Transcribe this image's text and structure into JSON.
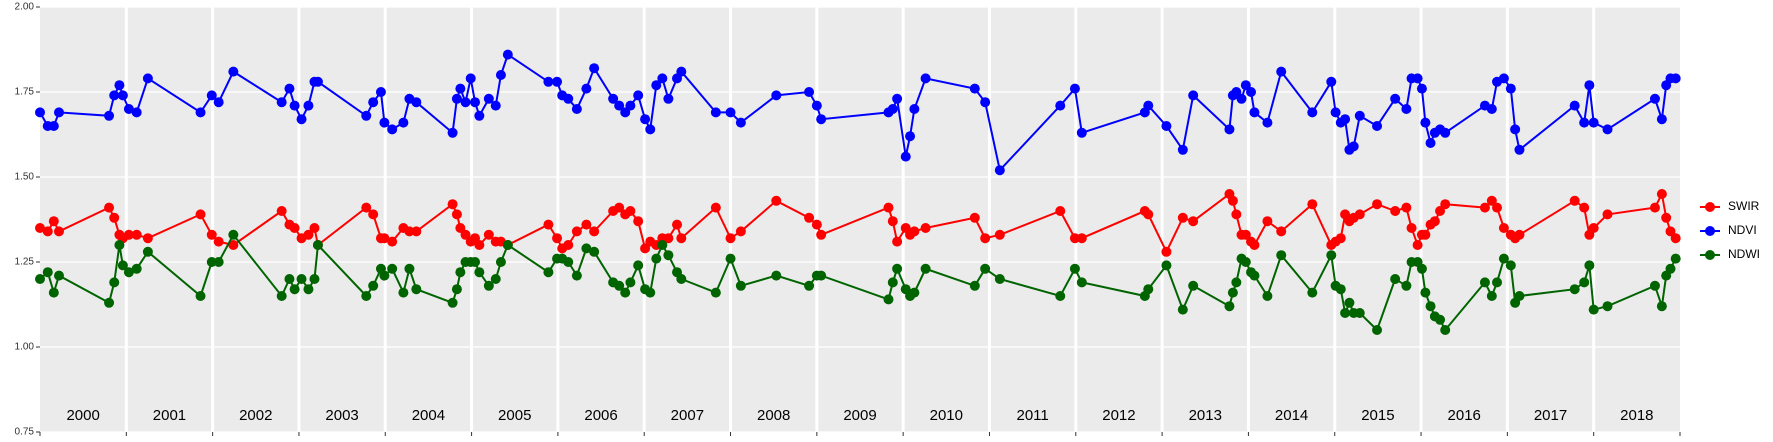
{
  "chart_data": {
    "type": "line",
    "x": [
      2000.0,
      2000.09,
      2000.16,
      2000.22,
      2000.8,
      2000.86,
      2000.92,
      2000.96,
      2001.03,
      2001.12,
      2001.25,
      2001.86,
      2001.99,
      2002.07,
      2002.24,
      2002.8,
      2002.89,
      2002.95,
      2003.03,
      2003.11,
      2003.18,
      2003.22,
      2003.78,
      2003.86,
      2003.95,
      2003.99,
      2004.08,
      2004.21,
      2004.28,
      2004.36,
      2004.78,
      2004.83,
      2004.87,
      2004.93,
      2004.99,
      2005.04,
      2005.09,
      2005.2,
      2005.28,
      2005.34,
      2005.42,
      2005.89,
      2005.99,
      2006.05,
      2006.12,
      2006.22,
      2006.33,
      2006.42,
      2006.64,
      2006.71,
      2006.78,
      2006.84,
      2006.93,
      2007.01,
      2007.07,
      2007.14,
      2007.21,
      2007.28,
      2007.38,
      2007.43,
      2007.83,
      2008.0,
      2008.12,
      2008.53,
      2008.91,
      2009.0,
      2009.05,
      2009.83,
      2009.88,
      2009.93,
      2010.03,
      2010.08,
      2010.13,
      2010.26,
      2010.83,
      2010.95,
      2011.12,
      2011.82,
      2011.99,
      2012.07,
      2012.8,
      2012.84,
      2013.05,
      2013.24,
      2013.36,
      2013.78,
      2013.82,
      2013.86,
      2013.92,
      2013.97,
      2014.03,
      2014.07,
      2014.22,
      2014.38,
      2014.74,
      2014.96,
      2015.01,
      2015.07,
      2015.12,
      2015.17,
      2015.22,
      2015.29,
      2015.49,
      2015.7,
      2015.83,
      2015.89,
      2015.96,
      2016.01,
      2016.05,
      2016.11,
      2016.16,
      2016.22,
      2016.28,
      2016.74,
      2016.82,
      2016.88,
      2016.96,
      2017.04,
      2017.09,
      2017.14,
      2017.78,
      2017.89,
      2017.95,
      2018.0,
      2018.16,
      2018.71,
      2018.79,
      2018.84,
      2018.89,
      2018.95
    ],
    "series": [
      {
        "name": "SWIR",
        "color": "#ff0000",
        "values": [
          1.35,
          1.34,
          1.37,
          1.34,
          1.41,
          1.38,
          1.33,
          1.32,
          1.33,
          1.33,
          1.32,
          1.39,
          1.33,
          1.31,
          1.3,
          1.4,
          1.36,
          1.35,
          1.32,
          1.33,
          1.35,
          1.3,
          1.41,
          1.39,
          1.32,
          1.32,
          1.31,
          1.35,
          1.34,
          1.34,
          1.42,
          1.39,
          1.35,
          1.33,
          1.31,
          1.32,
          1.3,
          1.33,
          1.31,
          1.31,
          1.3,
          1.36,
          1.32,
          1.29,
          1.3,
          1.34,
          1.36,
          1.34,
          1.4,
          1.41,
          1.39,
          1.4,
          1.37,
          1.29,
          1.31,
          1.3,
          1.32,
          1.32,
          1.36,
          1.32,
          1.41,
          1.32,
          1.34,
          1.43,
          1.38,
          1.36,
          1.33,
          1.41,
          1.37,
          1.31,
          1.35,
          1.33,
          1.34,
          1.35,
          1.38,
          1.32,
          1.33,
          1.4,
          1.32,
          1.32,
          1.4,
          1.39,
          1.28,
          1.38,
          1.37,
          1.45,
          1.43,
          1.39,
          1.33,
          1.33,
          1.31,
          1.3,
          1.37,
          1.34,
          1.42,
          1.3,
          1.31,
          1.32,
          1.39,
          1.37,
          1.38,
          1.39,
          1.42,
          1.4,
          1.41,
          1.35,
          1.3,
          1.33,
          1.33,
          1.36,
          1.37,
          1.4,
          1.42,
          1.41,
          1.43,
          1.41,
          1.35,
          1.33,
          1.32,
          1.33,
          1.43,
          1.41,
          1.33,
          1.35,
          1.39,
          1.41,
          1.45,
          1.38,
          1.34,
          1.32
        ]
      },
      {
        "name": "NDVI",
        "color": "#0000ff",
        "values": [
          1.69,
          1.65,
          1.65,
          1.69,
          1.68,
          1.74,
          1.77,
          1.74,
          1.7,
          1.69,
          1.79,
          1.69,
          1.74,
          1.72,
          1.81,
          1.72,
          1.76,
          1.71,
          1.67,
          1.71,
          1.78,
          1.78,
          1.68,
          1.72,
          1.75,
          1.66,
          1.64,
          1.66,
          1.73,
          1.72,
          1.63,
          1.73,
          1.76,
          1.72,
          1.79,
          1.72,
          1.68,
          1.73,
          1.71,
          1.8,
          1.86,
          1.78,
          1.78,
          1.74,
          1.73,
          1.7,
          1.76,
          1.82,
          1.73,
          1.71,
          1.69,
          1.71,
          1.74,
          1.67,
          1.64,
          1.77,
          1.79,
          1.73,
          1.79,
          1.81,
          1.69,
          1.69,
          1.66,
          1.74,
          1.75,
          1.71,
          1.67,
          1.69,
          1.7,
          1.73,
          1.56,
          1.62,
          1.7,
          1.79,
          1.76,
          1.72,
          1.52,
          1.71,
          1.76,
          1.63,
          1.69,
          1.71,
          1.65,
          1.58,
          1.74,
          1.64,
          1.74,
          1.75,
          1.73,
          1.77,
          1.75,
          1.69,
          1.66,
          1.81,
          1.69,
          1.78,
          1.69,
          1.66,
          1.67,
          1.58,
          1.59,
          1.68,
          1.65,
          1.73,
          1.7,
          1.79,
          1.79,
          1.76,
          1.66,
          1.6,
          1.63,
          1.64,
          1.63,
          1.71,
          1.7,
          1.78,
          1.79,
          1.76,
          1.64,
          1.58,
          1.71,
          1.66,
          1.77,
          1.66,
          1.64,
          1.73,
          1.67,
          1.77,
          1.79,
          1.79
        ]
      },
      {
        "name": "NDWI",
        "color": "#006400",
        "values": [
          1.2,
          1.22,
          1.16,
          1.21,
          1.13,
          1.19,
          1.3,
          1.24,
          1.22,
          1.23,
          1.28,
          1.15,
          1.25,
          1.25,
          1.33,
          1.15,
          1.2,
          1.17,
          1.2,
          1.17,
          1.2,
          1.3,
          1.15,
          1.18,
          1.23,
          1.21,
          1.23,
          1.16,
          1.23,
          1.17,
          1.13,
          1.17,
          1.22,
          1.25,
          1.25,
          1.25,
          1.22,
          1.18,
          1.2,
          1.25,
          1.3,
          1.22,
          1.26,
          1.26,
          1.25,
          1.21,
          1.29,
          1.28,
          1.19,
          1.18,
          1.16,
          1.19,
          1.24,
          1.17,
          1.16,
          1.26,
          1.3,
          1.27,
          1.22,
          1.2,
          1.16,
          1.26,
          1.18,
          1.21,
          1.18,
          1.21,
          1.21,
          1.14,
          1.19,
          1.23,
          1.17,
          1.15,
          1.16,
          1.23,
          1.18,
          1.23,
          1.2,
          1.15,
          1.23,
          1.19,
          1.15,
          1.17,
          1.24,
          1.11,
          1.18,
          1.12,
          1.16,
          1.19,
          1.26,
          1.25,
          1.22,
          1.21,
          1.15,
          1.27,
          1.16,
          1.27,
          1.18,
          1.17,
          1.1,
          1.13,
          1.1,
          1.1,
          1.05,
          1.2,
          1.18,
          1.25,
          1.25,
          1.23,
          1.16,
          1.12,
          1.09,
          1.08,
          1.05,
          1.19,
          1.15,
          1.19,
          1.26,
          1.24,
          1.13,
          1.15,
          1.17,
          1.19,
          1.24,
          1.11,
          1.12,
          1.18,
          1.12,
          1.21,
          1.23,
          1.26
        ]
      }
    ],
    "xlim": [
      2000,
      2019
    ],
    "xticks": [
      2000,
      2001,
      2002,
      2003,
      2004,
      2005,
      2006,
      2007,
      2008,
      2009,
      2010,
      2011,
      2012,
      2013,
      2014,
      2015,
      2016,
      2017,
      2018,
      2019
    ],
    "year_labels": [
      "2000",
      "2001",
      "2002",
      "2003",
      "2004",
      "2005",
      "2006",
      "2007",
      "2008",
      "2009",
      "2010",
      "2011",
      "2012",
      "2013",
      "2014",
      "2015",
      "2016",
      "2017",
      "2018"
    ],
    "ylim": [
      0.75,
      2.0
    ],
    "yticks": [
      {
        "value": 0.75,
        "label": "0.75"
      },
      {
        "value": 1.0,
        "label": "1.00"
      },
      {
        "value": 1.25,
        "label": "1.25"
      },
      {
        "value": 1.5,
        "label": "1.50"
      },
      {
        "value": 1.75,
        "label": "1.75"
      },
      {
        "value": 2.0,
        "label": "2.00"
      }
    ],
    "grid": true,
    "legend": "right"
  }
}
